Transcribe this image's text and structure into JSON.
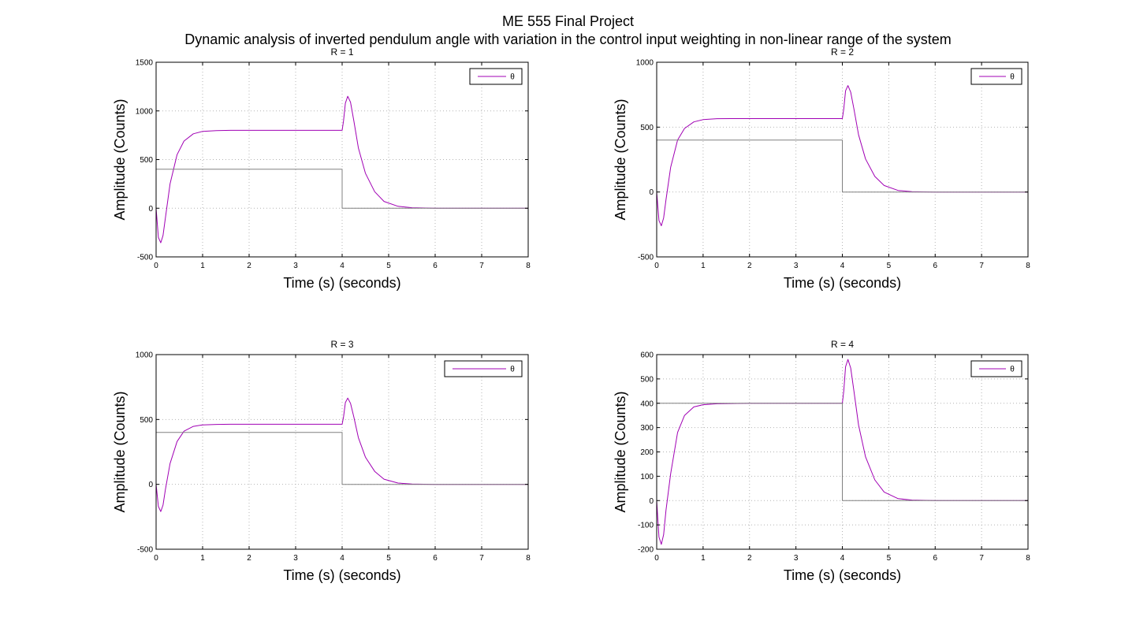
{
  "figure": {
    "title_line1": "ME 555 Final Project",
    "title_line2": "Dynamic analysis of inverted pendulum angle with variation in the control input weighting in non-linear range of the system"
  },
  "colors": {
    "response": "#a000b4",
    "reference": "#808080",
    "grid": "#b4b4b4"
  },
  "chart_data": [
    {
      "type": "line",
      "title": "R = 1",
      "xlabel": "Time (s) (seconds)",
      "ylabel": "Amplitude (Counts)",
      "xlim": [
        0,
        8
      ],
      "ylim": [
        -500,
        1500
      ],
      "xticks": [
        0,
        1,
        2,
        3,
        4,
        5,
        6,
        7,
        8
      ],
      "yticks": [
        -500,
        0,
        500,
        1000,
        1500
      ],
      "grid": true,
      "legend_position": "top-right",
      "series": [
        {
          "name": "θ",
          "x": [
            0,
            0.05,
            0.1,
            0.15,
            0.2,
            0.3,
            0.45,
            0.6,
            0.8,
            1.0,
            1.3,
            1.6,
            2.0,
            3.0,
            4.0,
            4.03,
            4.07,
            4.12,
            4.18,
            4.25,
            4.35,
            4.5,
            4.7,
            4.9,
            5.2,
            5.5,
            6,
            7,
            8
          ],
          "y": [
            0,
            -300,
            -355,
            -280,
            -100,
            250,
            550,
            690,
            765,
            790,
            798,
            800,
            800,
            800,
            800,
            900,
            1080,
            1150,
            1090,
            900,
            620,
            360,
            170,
            70,
            20,
            5,
            0,
            0,
            0
          ]
        },
        {
          "role": "reference",
          "x": [
            0,
            4,
            4,
            8
          ],
          "y": [
            400,
            400,
            0,
            0
          ]
        }
      ]
    },
    {
      "type": "line",
      "title": "R = 2",
      "xlabel": "Time (s) (seconds)",
      "ylabel": "Amplitude (Counts)",
      "xlim": [
        0,
        8
      ],
      "ylim": [
        -500,
        1000
      ],
      "xticks": [
        0,
        1,
        2,
        3,
        4,
        5,
        6,
        7,
        8
      ],
      "yticks": [
        -500,
        0,
        500,
        1000
      ],
      "grid": true,
      "legend_position": "top-right",
      "series": [
        {
          "name": "θ",
          "x": [
            0,
            0.05,
            0.1,
            0.15,
            0.2,
            0.3,
            0.45,
            0.6,
            0.8,
            1.0,
            1.3,
            1.6,
            2.0,
            3.0,
            4.0,
            4.03,
            4.07,
            4.12,
            4.18,
            4.25,
            4.35,
            4.5,
            4.7,
            4.9,
            5.2,
            5.5,
            6,
            7,
            8
          ],
          "y": [
            0,
            -220,
            -260,
            -200,
            -60,
            190,
            400,
            490,
            540,
            558,
            565,
            566,
            566,
            566,
            566,
            640,
            780,
            820,
            770,
            640,
            440,
            255,
            120,
            50,
            12,
            3,
            0,
            0,
            0
          ]
        },
        {
          "role": "reference",
          "x": [
            0,
            4,
            4,
            8
          ],
          "y": [
            400,
            400,
            0,
            0
          ]
        }
      ]
    },
    {
      "type": "line",
      "title": "R = 3",
      "xlabel": "Time (s) (seconds)",
      "ylabel": "Amplitude (Counts)",
      "xlim": [
        0,
        8
      ],
      "ylim": [
        -500,
        1000
      ],
      "xticks": [
        0,
        1,
        2,
        3,
        4,
        5,
        6,
        7,
        8
      ],
      "yticks": [
        -500,
        0,
        500,
        1000
      ],
      "grid": true,
      "legend_position": "top-right",
      "series": [
        {
          "name": "θ",
          "x": [
            0,
            0.05,
            0.1,
            0.15,
            0.2,
            0.3,
            0.45,
            0.6,
            0.8,
            1.0,
            1.3,
            1.6,
            2.0,
            3.0,
            4.0,
            4.03,
            4.07,
            4.12,
            4.18,
            4.25,
            4.35,
            4.5,
            4.7,
            4.9,
            5.2,
            5.5,
            6,
            7,
            8
          ],
          "y": [
            0,
            -170,
            -210,
            -160,
            -40,
            160,
            330,
            410,
            447,
            458,
            462,
            463,
            463,
            463,
            463,
            520,
            630,
            665,
            625,
            520,
            360,
            210,
            100,
            40,
            10,
            2,
            0,
            0,
            0
          ]
        },
        {
          "role": "reference",
          "x": [
            0,
            4,
            4,
            8
          ],
          "y": [
            400,
            400,
            0,
            0
          ]
        }
      ]
    },
    {
      "type": "line",
      "title": "R = 4",
      "xlabel": "Time (s) (seconds)",
      "ylabel": "Amplitude (Counts)",
      "xlim": [
        0,
        8
      ],
      "ylim": [
        -200,
        600
      ],
      "xticks": [
        0,
        1,
        2,
        3,
        4,
        5,
        6,
        7,
        8
      ],
      "yticks": [
        -200,
        -100,
        0,
        100,
        200,
        300,
        400,
        500,
        600
      ],
      "grid": true,
      "legend_position": "top-right",
      "series": [
        {
          "name": "θ",
          "x": [
            0,
            0.05,
            0.1,
            0.15,
            0.2,
            0.3,
            0.45,
            0.6,
            0.8,
            1.0,
            1.3,
            1.6,
            2.0,
            3.0,
            4.0,
            4.03,
            4.07,
            4.12,
            4.18,
            4.25,
            4.35,
            4.5,
            4.7,
            4.9,
            5.2,
            5.5,
            6,
            7,
            8
          ],
          "y": [
            0,
            -150,
            -180,
            -140,
            -40,
            110,
            280,
            350,
            385,
            394,
            398,
            399,
            400,
            400,
            400,
            450,
            550,
            580,
            545,
            450,
            310,
            180,
            85,
            35,
            8,
            2,
            0,
            0,
            0
          ]
        },
        {
          "role": "reference",
          "x": [
            0,
            4,
            4,
            8
          ],
          "y": [
            400,
            400,
            0,
            0
          ]
        }
      ]
    }
  ]
}
